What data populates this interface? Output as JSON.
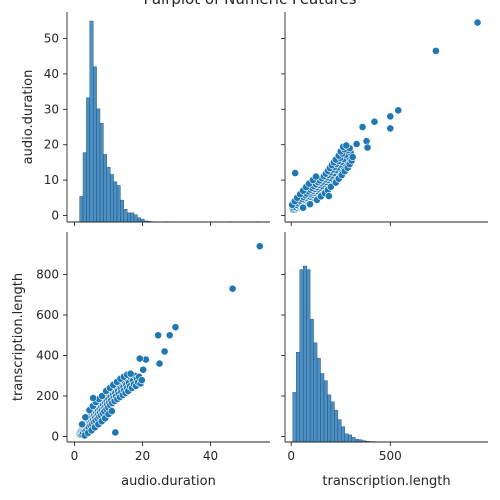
{
  "figure": {
    "title": "Pairplot of Numeric Features"
  },
  "chart_data": {
    "type": "pairplot",
    "title": "Pairplot of Numeric Features",
    "variables": [
      "audio.duration",
      "transcription.length"
    ],
    "marker_color": "#1f77b4",
    "hist_fill": "#2d7bb6",
    "grid": false,
    "ranges": {
      "audio.duration": [
        0,
        55
      ],
      "transcription.length": [
        0,
        950
      ]
    },
    "ticks": {
      "audio.duration": [
        0,
        20,
        40
      ],
      "transcription.length": [
        0,
        500
      ]
    },
    "diag_ticks": {
      "audio.duration": [
        0,
        10,
        20,
        30,
        40,
        50
      ],
      "transcription.length": [
        0,
        200,
        400,
        600,
        800
      ]
    },
    "hist_audio": {
      "bin_edges_start": 0.5,
      "bin_width": 1.0,
      "counts": [
        0,
        70,
        190,
        340,
        550,
        425,
        310,
        270,
        185,
        150,
        130,
        110,
        100,
        60,
        35,
        25,
        25,
        20,
        12,
        8,
        3,
        2,
        1,
        1,
        0,
        0,
        1,
        0,
        1,
        0,
        0,
        0,
        0,
        0,
        0,
        0,
        0,
        0,
        0,
        0,
        0,
        0,
        0,
        0,
        0,
        1,
        0,
        0,
        0,
        0,
        0,
        0,
        0,
        1
      ]
    },
    "hist_transcription": {
      "bin_edges_start": 8,
      "bin_width": 17.5,
      "counts": [
        210,
        380,
        730,
        745,
        730,
        520,
        420,
        355,
        290,
        260,
        200,
        170,
        135,
        95,
        65,
        35,
        30,
        20,
        12,
        10,
        6,
        3,
        2,
        2,
        1,
        1,
        1,
        0,
        1,
        0,
        0,
        0,
        0,
        0,
        0,
        0,
        0,
        0,
        0,
        0,
        0,
        0,
        0,
        1,
        0,
        0,
        0,
        0,
        0,
        0,
        0,
        0,
        0,
        1
      ]
    },
    "highlight_points": [
      {
        "audio.duration": 54.5,
        "transcription.length": 940
      },
      {
        "audio.duration": 46.5,
        "transcription.length": 730
      },
      {
        "audio.duration": 29.7,
        "transcription.length": 540
      },
      {
        "audio.duration": 28.0,
        "transcription.length": 500
      },
      {
        "audio.duration": 24.6,
        "transcription.length": 500
      },
      {
        "audio.duration": 26.5,
        "transcription.length": 420
      },
      {
        "audio.duration": 25.0,
        "transcription.length": 360
      },
      {
        "audio.duration": 21.0,
        "transcription.length": 380
      },
      {
        "audio.duration": 19.2,
        "transcription.length": 385
      },
      {
        "audio.duration": 20.2,
        "transcription.length": 330
      },
      {
        "audio.duration": 12.0,
        "transcription.length": 20
      },
      {
        "audio.duration": 5.5,
        "transcription.length": 190
      }
    ],
    "cluster_points": [
      [
        1.5,
        10
      ],
      [
        1.6,
        15
      ],
      [
        1.8,
        22
      ],
      [
        2.0,
        8
      ],
      [
        2.1,
        30
      ],
      [
        2.3,
        12
      ],
      [
        2.4,
        40
      ],
      [
        2.5,
        20
      ],
      [
        2.7,
        35
      ],
      [
        2.8,
        50
      ],
      [
        3.0,
        28
      ],
      [
        3.1,
        55
      ],
      [
        3.3,
        42
      ],
      [
        3.4,
        70
      ],
      [
        3.5,
        33
      ],
      [
        3.6,
        60
      ],
      [
        3.8,
        48
      ],
      [
        3.9,
        80
      ],
      [
        4.0,
        58
      ],
      [
        4.1,
        90
      ],
      [
        4.2,
        45
      ],
      [
        4.3,
        72
      ],
      [
        4.5,
        64
      ],
      [
        4.6,
        100
      ],
      [
        4.7,
        55
      ],
      [
        4.8,
        85
      ],
      [
        5.0,
        75
      ],
      [
        5.1,
        110
      ],
      [
        5.2,
        62
      ],
      [
        5.3,
        95
      ],
      [
        5.5,
        82
      ],
      [
        5.6,
        120
      ],
      [
        5.7,
        70
      ],
      [
        5.8,
        105
      ],
      [
        6.0,
        92
      ],
      [
        6.1,
        130
      ],
      [
        6.2,
        78
      ],
      [
        6.4,
        115
      ],
      [
        6.5,
        100
      ],
      [
        6.6,
        140
      ],
      [
        6.8,
        88
      ],
      [
        6.9,
        125
      ],
      [
        7.0,
        110
      ],
      [
        7.1,
        150
      ],
      [
        7.3,
        98
      ],
      [
        7.4,
        135
      ],
      [
        7.5,
        118
      ],
      [
        7.6,
        160
      ],
      [
        7.8,
        105
      ],
      [
        7.9,
        145
      ],
      [
        8.0,
        128
      ],
      [
        8.2,
        170
      ],
      [
        8.3,
        115
      ],
      [
        8.4,
        155
      ],
      [
        8.6,
        138
      ],
      [
        8.7,
        180
      ],
      [
        8.8,
        125
      ],
      [
        9.0,
        165
      ],
      [
        9.1,
        148
      ],
      [
        9.2,
        190
      ],
      [
        9.4,
        135
      ],
      [
        9.5,
        175
      ],
      [
        9.6,
        158
      ],
      [
        9.8,
        200
      ],
      [
        9.9,
        145
      ],
      [
        10.0,
        185
      ],
      [
        10.2,
        168
      ],
      [
        10.3,
        210
      ],
      [
        10.5,
        155
      ],
      [
        10.6,
        195
      ],
      [
        10.8,
        178
      ],
      [
        11.0,
        220
      ],
      [
        11.1,
        165
      ],
      [
        11.3,
        205
      ],
      [
        11.5,
        188
      ],
      [
        11.6,
        230
      ],
      [
        11.8,
        175
      ],
      [
        12.0,
        215
      ],
      [
        12.2,
        198
      ],
      [
        12.4,
        240
      ],
      [
        12.6,
        185
      ],
      [
        12.8,
        225
      ],
      [
        13.0,
        208
      ],
      [
        13.2,
        250
      ],
      [
        13.4,
        195
      ],
      [
        13.6,
        235
      ],
      [
        13.8,
        218
      ],
      [
        14.0,
        260
      ],
      [
        14.2,
        205
      ],
      [
        14.4,
        245
      ],
      [
        14.6,
        228
      ],
      [
        14.8,
        270
      ],
      [
        15.0,
        215
      ],
      [
        15.2,
        255
      ],
      [
        15.4,
        238
      ],
      [
        15.6,
        280
      ],
      [
        15.8,
        225
      ],
      [
        16.0,
        265
      ],
      [
        16.3,
        248
      ],
      [
        16.6,
        290
      ],
      [
        16.9,
        240
      ],
      [
        17.2,
        275
      ],
      [
        17.5,
        258
      ],
      [
        17.8,
        300
      ],
      [
        18.1,
        250
      ],
      [
        18.4,
        285
      ],
      [
        18.7,
        268
      ],
      [
        19.0,
        295
      ],
      [
        19.4,
        262
      ],
      [
        19.8,
        278
      ],
      [
        2.2,
        60
      ],
      [
        3.2,
        95
      ],
      [
        4.4,
        130
      ],
      [
        5.4,
        150
      ],
      [
        6.3,
        170
      ],
      [
        7.2,
        185
      ],
      [
        8.1,
        200
      ],
      [
        9.3,
        225
      ],
      [
        10.4,
        240
      ],
      [
        11.4,
        255
      ],
      [
        12.5,
        270
      ],
      [
        13.5,
        285
      ],
      [
        14.5,
        295
      ],
      [
        15.5,
        305
      ],
      [
        16.5,
        310
      ],
      [
        3.0,
        5
      ],
      [
        4.0,
        18
      ],
      [
        5.0,
        30
      ],
      [
        6.0,
        45
      ],
      [
        7.0,
        60
      ],
      [
        8.0,
        75
      ],
      [
        9.0,
        90
      ],
      [
        10.0,
        110
      ],
      [
        11.0,
        125
      ]
    ]
  }
}
